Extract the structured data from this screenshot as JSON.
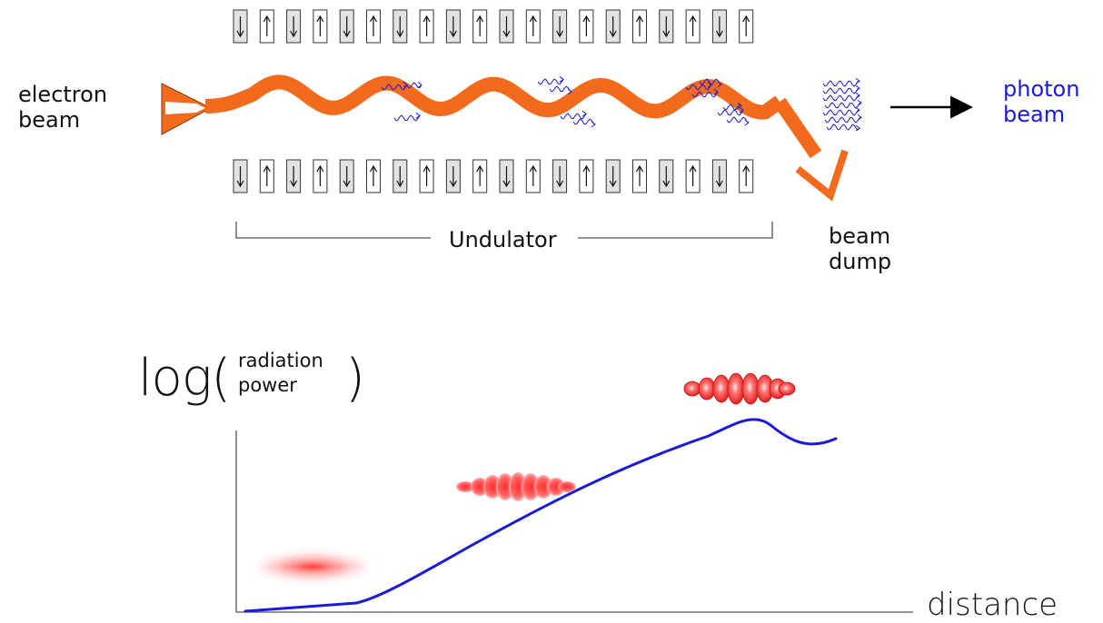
{
  "diagram": {
    "electron_beam_label": [
      "electron",
      "beam"
    ],
    "photon_beam_label": [
      "photon",
      "beam"
    ],
    "beam_dump_label": [
      "beam",
      "dump"
    ],
    "undulator_label": "Undulator",
    "y_axis_label": {
      "prefix": "log(",
      "lines": [
        "radiation",
        "power"
      ],
      "suffix": ")"
    },
    "x_axis_label": "distance",
    "magnets_top": [
      "down",
      "up",
      "down",
      "up",
      "down",
      "up",
      "down",
      "up",
      "down",
      "up",
      "down",
      "up",
      "down",
      "up",
      "down",
      "up",
      "down",
      "up",
      "down",
      "up"
    ],
    "magnets_bottom": [
      "down",
      "up",
      "down",
      "up",
      "down",
      "up",
      "down",
      "up",
      "down",
      "up",
      "down",
      "up",
      "down",
      "up",
      "down",
      "up",
      "down",
      "up",
      "down",
      "up"
    ],
    "colors": {
      "electron_beam": "#f26b1d",
      "photon": "#1a1adc",
      "curve": "#1a1adc",
      "bunch": "#ff3030",
      "magnet_fill_down": "#e2e2e2",
      "magnet_fill_up": "#ffffff"
    }
  }
}
